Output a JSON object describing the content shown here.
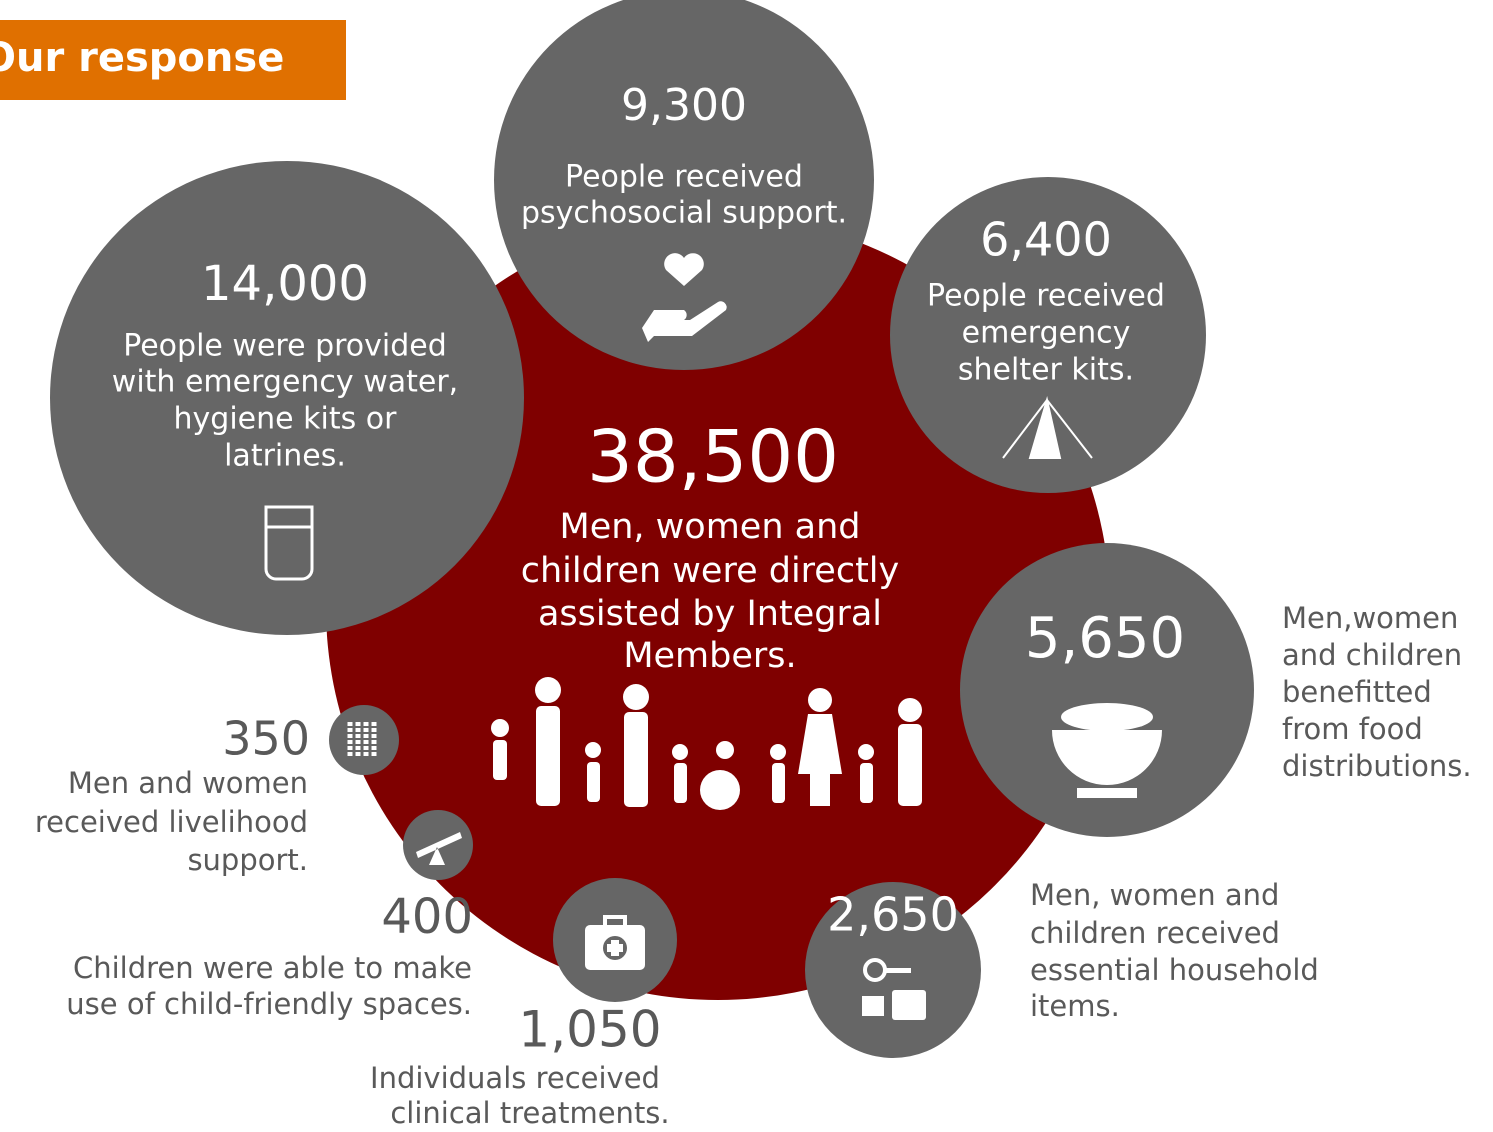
{
  "header": {
    "title": "Our response"
  },
  "center": {
    "number": "38,500",
    "lines": [
      "Men, women and",
      "children were directly",
      "assisted by Integral",
      "Members."
    ]
  },
  "items": [
    {
      "number": "9,300",
      "lines": [
        "People received",
        "psychosocial support."
      ]
    },
    {
      "number": "14,000",
      "lines": [
        "People were provided",
        "with emergency water,",
        "hygiene kits or",
        "latrines."
      ]
    },
    {
      "number": "6,400",
      "lines": [
        "People received",
        "emergency",
        "shelter kits."
      ]
    },
    {
      "number": "5,650",
      "lines": [
        "Men,women",
        "and children",
        "benefitted",
        "from food",
        "distributions."
      ]
    },
    {
      "number": "2,650",
      "lines": [
        "Men, women and",
        "children received",
        "essential household",
        "items."
      ]
    },
    {
      "number": "1,050",
      "lines": [
        "Individuals received",
        "clinical treatments."
      ]
    },
    {
      "number": "400",
      "lines": [
        "Children were able to make",
        "use of child-friendly spaces."
      ]
    },
    {
      "number": "350",
      "lines": [
        "Men and women",
        "received livelihood",
        "support."
      ]
    }
  ]
}
